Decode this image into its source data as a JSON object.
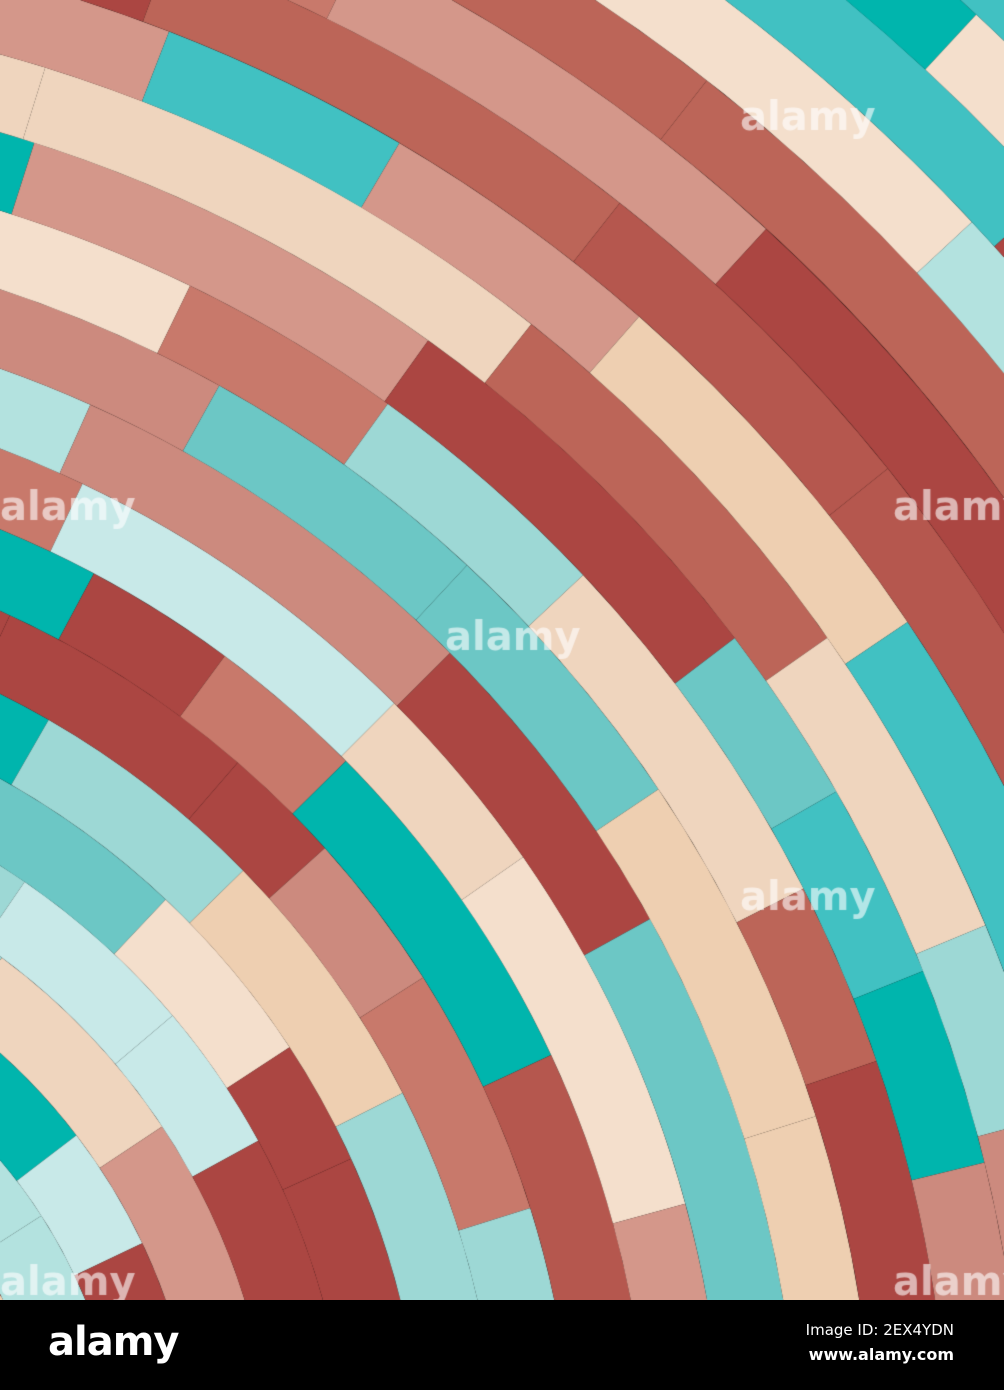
{
  "image": {
    "palette": [
      "#00b5ad",
      "#41c1c2",
      "#6cc7c5",
      "#9dd8d5",
      "#b3e2df",
      "#c8e9e8",
      "#efd5be",
      "#eecfb1",
      "#f4dfcc",
      "#d4978a",
      "#c8796b",
      "#bc6558",
      "#b5574e",
      "#ab4642",
      "#cc8a7e"
    ],
    "watermark": "alamy"
  },
  "footer": {
    "logo": "alamy",
    "image_id": "Image ID: 2EX4YDN",
    "site": "www.alamy.com"
  }
}
